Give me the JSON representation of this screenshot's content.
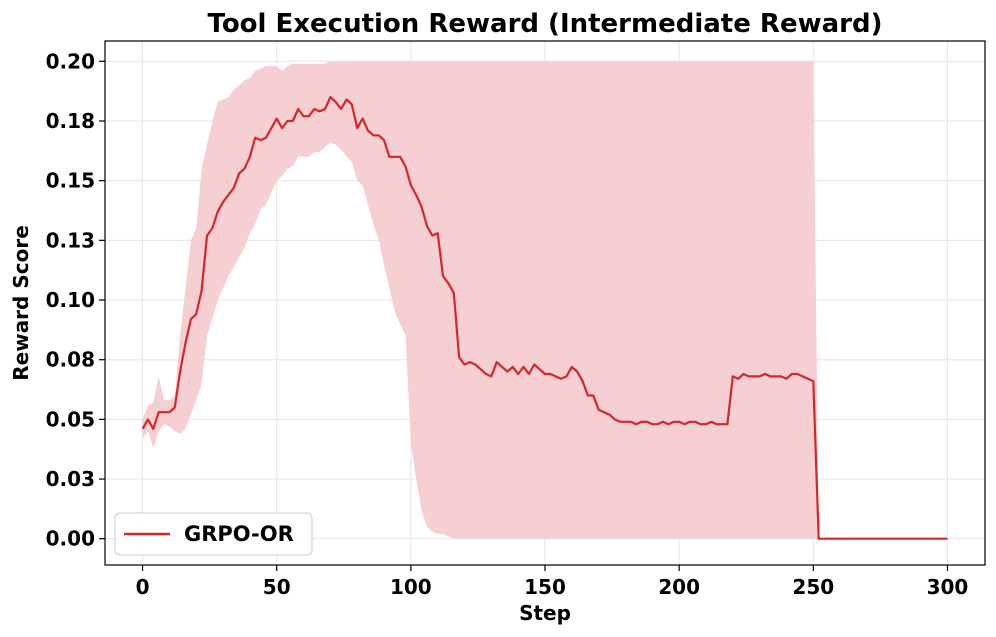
{
  "chart_data": {
    "type": "line",
    "title": "Tool Execution Reward (Intermediate Reward)",
    "xlabel": "Step",
    "ylabel": "Reward Score",
    "xlim": [
      -14,
      314
    ],
    "ylim": [
      -0.011,
      0.2085
    ],
    "x_ticks": [
      0,
      50,
      100,
      150,
      200,
      250,
      300
    ],
    "x_tick_labels": [
      "0",
      "50",
      "100",
      "150",
      "200",
      "250",
      "300"
    ],
    "y_ticks": [
      0.0,
      0.025,
      0.05,
      0.075,
      0.1,
      0.125,
      0.15,
      0.175,
      0.2
    ],
    "y_tick_labels": [
      "0.00",
      "0.03",
      "0.05",
      "0.08",
      "0.10",
      "0.13",
      "0.15",
      "0.18",
      "0.20"
    ],
    "grid": true,
    "legend_position": "lower-left",
    "series": [
      {
        "name": "GRPO-OR",
        "color": "#d62728",
        "band_color": "#f5cfd2",
        "x": [
          0,
          2,
          4,
          6,
          8,
          10,
          12,
          14,
          16,
          18,
          20,
          22,
          24,
          26,
          28,
          30,
          32,
          34,
          36,
          38,
          40,
          42,
          44,
          46,
          48,
          50,
          52,
          54,
          56,
          58,
          60,
          62,
          64,
          66,
          68,
          70,
          72,
          74,
          76,
          78,
          80,
          82,
          84,
          86,
          88,
          90,
          92,
          94,
          96,
          98,
          100,
          102,
          104,
          106,
          108,
          110,
          112,
          114,
          116,
          118,
          120,
          122,
          124,
          126,
          128,
          130,
          132,
          134,
          136,
          138,
          140,
          142,
          144,
          146,
          148,
          150,
          152,
          154,
          156,
          158,
          160,
          162,
          164,
          166,
          168,
          170,
          172,
          174,
          176,
          178,
          180,
          182,
          184,
          186,
          188,
          190,
          192,
          194,
          196,
          198,
          200,
          202,
          204,
          206,
          208,
          210,
          212,
          214,
          216,
          218,
          220,
          222,
          224,
          226,
          228,
          230,
          232,
          234,
          236,
          238,
          240,
          242,
          244,
          246,
          248,
          250,
          252,
          254,
          256,
          300
        ],
        "y": [
          0.046,
          0.05,
          0.046,
          0.053,
          0.053,
          0.053,
          0.055,
          0.07,
          0.082,
          0.092,
          0.094,
          0.104,
          0.127,
          0.13,
          0.137,
          0.141,
          0.144,
          0.147,
          0.153,
          0.155,
          0.16,
          0.168,
          0.167,
          0.168,
          0.172,
          0.176,
          0.172,
          0.175,
          0.175,
          0.18,
          0.177,
          0.177,
          0.18,
          0.179,
          0.18,
          0.185,
          0.183,
          0.18,
          0.184,
          0.182,
          0.172,
          0.176,
          0.171,
          0.169,
          0.169,
          0.167,
          0.16,
          0.16,
          0.16,
          0.156,
          0.148,
          0.144,
          0.139,
          0.131,
          0.127,
          0.128,
          0.11,
          0.107,
          0.103,
          0.076,
          0.073,
          0.074,
          0.073,
          0.071,
          0.069,
          0.068,
          0.074,
          0.072,
          0.07,
          0.072,
          0.069,
          0.072,
          0.069,
          0.073,
          0.071,
          0.069,
          0.069,
          0.068,
          0.067,
          0.068,
          0.072,
          0.07,
          0.066,
          0.06,
          0.06,
          0.054,
          0.053,
          0.052,
          0.05,
          0.049,
          0.049,
          0.049,
          0.048,
          0.049,
          0.049,
          0.048,
          0.048,
          0.049,
          0.048,
          0.049,
          0.049,
          0.048,
          0.049,
          0.049,
          0.048,
          0.048,
          0.049,
          0.048,
          0.048,
          0.048,
          0.068,
          0.067,
          0.069,
          0.068,
          0.068,
          0.068,
          0.069,
          0.068,
          0.068,
          0.068,
          0.067,
          0.069,
          0.069,
          0.068,
          0.067,
          0.066,
          0.0,
          0.0,
          0.0,
          0.0
        ],
        "upper": [
          0.05,
          0.056,
          0.057,
          0.068,
          0.058,
          0.058,
          0.06,
          0.085,
          0.105,
          0.125,
          0.13,
          0.155,
          0.165,
          0.175,
          0.183,
          0.184,
          0.185,
          0.188,
          0.19,
          0.192,
          0.193,
          0.196,
          0.197,
          0.198,
          0.198,
          0.198,
          0.196,
          0.198,
          0.199,
          0.199,
          0.199,
          0.199,
          0.199,
          0.199,
          0.199,
          0.2,
          0.2,
          0.2,
          0.2,
          0.2,
          0.2,
          0.2,
          0.2,
          0.2,
          0.2,
          0.2,
          0.2,
          0.2,
          0.2,
          0.2,
          0.2,
          0.2,
          0.2,
          0.2,
          0.2,
          0.2,
          0.2,
          0.2,
          0.2,
          0.2,
          0.2,
          0.2,
          0.2,
          0.2,
          0.2,
          0.2,
          0.2,
          0.2,
          0.2,
          0.2,
          0.2,
          0.2,
          0.2,
          0.2,
          0.2,
          0.2,
          0.2,
          0.2,
          0.2,
          0.2,
          0.2,
          0.2,
          0.2,
          0.2,
          0.2,
          0.2,
          0.2,
          0.2,
          0.2,
          0.2,
          0.2,
          0.2,
          0.2,
          0.2,
          0.2,
          0.2,
          0.2,
          0.2,
          0.2,
          0.2,
          0.2,
          0.2,
          0.2,
          0.2,
          0.2,
          0.2,
          0.2,
          0.2,
          0.2,
          0.2,
          0.2,
          0.2,
          0.2,
          0.2,
          0.2,
          0.2,
          0.2,
          0.2,
          0.2,
          0.2,
          0.2,
          0.2,
          0.2,
          0.2,
          0.2,
          0.2,
          0.0,
          0.0,
          0.0,
          0.0
        ],
        "lower": [
          0.042,
          0.045,
          0.038,
          0.045,
          0.048,
          0.047,
          0.045,
          0.044,
          0.046,
          0.052,
          0.058,
          0.065,
          0.085,
          0.092,
          0.1,
          0.105,
          0.11,
          0.114,
          0.118,
          0.122,
          0.128,
          0.132,
          0.138,
          0.14,
          0.145,
          0.15,
          0.152,
          0.155,
          0.156,
          0.16,
          0.16,
          0.16,
          0.162,
          0.162,
          0.164,
          0.166,
          0.165,
          0.163,
          0.16,
          0.158,
          0.15,
          0.148,
          0.14,
          0.132,
          0.125,
          0.115,
          0.105,
          0.095,
          0.09,
          0.085,
          0.04,
          0.025,
          0.012,
          0.005,
          0.003,
          0.002,
          0.002,
          0.001,
          0.0,
          0.0,
          0.0,
          0.0,
          0.0,
          0.0,
          0.0,
          0.0,
          0.0,
          0.0,
          0.0,
          0.0,
          0.0,
          0.0,
          0.0,
          0.0,
          0.0,
          0.0,
          0.0,
          0.0,
          0.0,
          0.0,
          0.0,
          0.0,
          0.0,
          0.0,
          0.0,
          0.0,
          0.0,
          0.0,
          0.0,
          0.0,
          0.0,
          0.0,
          0.0,
          0.0,
          0.0,
          0.0,
          0.0,
          0.0,
          0.0,
          0.0,
          0.0,
          0.0,
          0.0,
          0.0,
          0.0,
          0.0,
          0.0,
          0.0,
          0.0,
          0.0,
          0.0,
          0.0,
          0.0,
          0.0,
          0.0,
          0.0,
          0.0,
          0.0,
          0.0,
          0.0,
          0.0,
          0.0,
          0.0,
          0.0,
          0.0,
          0.0,
          0.0,
          0.0,
          0.0,
          0.0
        ]
      }
    ]
  }
}
